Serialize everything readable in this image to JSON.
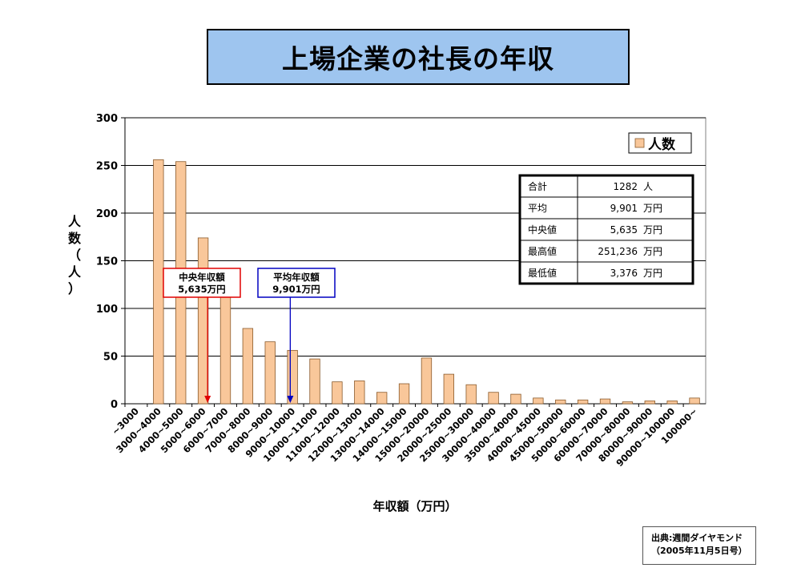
{
  "title": "上場企業の社長の年収",
  "source": {
    "line1": "出典:週間ダイヤモンド",
    "line2": "（2005年11月5日号）"
  },
  "stats": {
    "rows": [
      {
        "label": "合計",
        "value": "1282",
        "unit": "人"
      },
      {
        "label": "平均",
        "value": "9,901",
        "unit": "万円"
      },
      {
        "label": "中央値",
        "value": "5,635",
        "unit": "万円"
      },
      {
        "label": "最高値",
        "value": "251,236",
        "unit": "万円"
      },
      {
        "label": "最低値",
        "value": "3,376",
        "unit": "万円"
      }
    ]
  },
  "colors": {
    "bar_fill": "#f9c79a",
    "bar_stroke": "#8a5a2b",
    "median": "#e00000",
    "mean": "#0000c0",
    "title_bg": "#9ec5ef"
  },
  "chart_data": {
    "type": "bar",
    "xlabel": "年収額（万円）",
    "ylabel": "人数（人）",
    "ylim": [
      0,
      300
    ],
    "yticks": [
      0,
      50,
      100,
      150,
      200,
      250,
      300
    ],
    "grid": true,
    "legend": {
      "position": "top-right",
      "entries": [
        "人数"
      ]
    },
    "categories": [
      "~3000",
      "3000~4000",
      "4000~5000",
      "5000~6000",
      "6000~7000",
      "7000~8000",
      "8000~9000",
      "9000~10000",
      "10000~11000",
      "11000~12000",
      "12000~13000",
      "13000~14000",
      "14000~15000",
      "15000~20000",
      "20000~25000",
      "25000~30000",
      "30000~40000",
      "35000~40000",
      "40000~45000",
      "45000~50000",
      "50000~60000",
      "60000~70000",
      "70000~80000",
      "80000~90000",
      "90000~100000",
      "100000~"
    ],
    "series": [
      {
        "name": "人数",
        "values": [
          0,
          256,
          254,
          174,
          118,
          79,
          65,
          56,
          47,
          23,
          24,
          12,
          21,
          48,
          31,
          20,
          12,
          10,
          6,
          4,
          4,
          5,
          2,
          3,
          3,
          6
        ]
      }
    ],
    "annotations": [
      {
        "line1": "中央年収額",
        "line2": "5,635万円",
        "category_index": 3.7,
        "kind": "median"
      },
      {
        "line1": "平均年収額",
        "line2": "9,901万円",
        "category_index": 7.4,
        "kind": "mean"
      }
    ]
  }
}
